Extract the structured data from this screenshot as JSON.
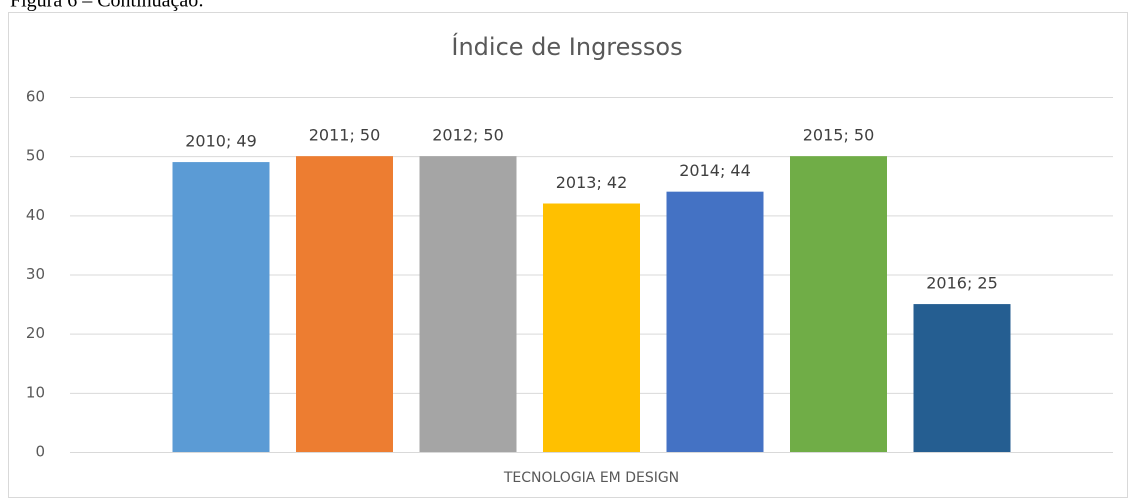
{
  "caption": "Figura 6 – Continuação:",
  "chart_data": {
    "type": "bar",
    "title": "Índice de Ingressos",
    "categories": [
      "TECNOLOGIA EM DESIGN"
    ],
    "series": [
      {
        "color": "#5b9bd5",
        "values": [
          49
        ],
        "value_labels": [
          "2010; 49"
        ]
      },
      {
        "color": "#ed7d31",
        "values": [
          50
        ],
        "value_labels": [
          "2011; 50"
        ]
      },
      {
        "color": "#a5a5a5",
        "values": [
          50
        ],
        "value_labels": [
          "2012; 50"
        ]
      },
      {
        "color": "#ffc000",
        "values": [
          42
        ],
        "value_labels": [
          "2013; 42"
        ]
      },
      {
        "color": "#4472c4",
        "values": [
          44
        ],
        "value_labels": [
          "2014; 44"
        ]
      },
      {
        "color": "#70ad47",
        "values": [
          50
        ],
        "value_labels": [
          "2015; 50"
        ]
      },
      {
        "color": "#255e91",
        "values": [
          25
        ],
        "value_labels": [
          "2016; 25"
        ]
      }
    ],
    "ylim": [
      0,
      60
    ],
    "yticks": [
      0,
      10,
      20,
      30,
      40,
      50,
      60
    ],
    "grid": true
  }
}
